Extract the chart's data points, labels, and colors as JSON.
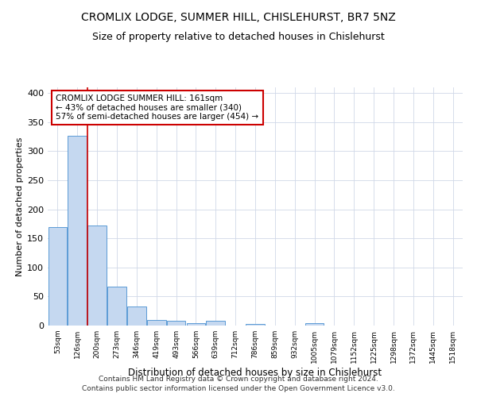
{
  "title": "CROMLIX LODGE, SUMMER HILL, CHISLEHURST, BR7 5NZ",
  "subtitle": "Size of property relative to detached houses in Chislehurst",
  "xlabel": "Distribution of detached houses by size in Chislehurst",
  "ylabel": "Number of detached properties",
  "footnote1": "Contains HM Land Registry data © Crown copyright and database right 2024.",
  "footnote2": "Contains public sector information licensed under the Open Government Licence v3.0.",
  "bar_labels": [
    "53sqm",
    "126sqm",
    "200sqm",
    "273sqm",
    "346sqm",
    "419sqm",
    "493sqm",
    "566sqm",
    "639sqm",
    "712sqm",
    "786sqm",
    "859sqm",
    "932sqm",
    "1005sqm",
    "1079sqm",
    "1152sqm",
    "1225sqm",
    "1298sqm",
    "1372sqm",
    "1445sqm",
    "1518sqm"
  ],
  "bar_values": [
    169,
    327,
    172,
    67,
    33,
    10,
    8,
    4,
    8,
    0,
    3,
    0,
    0,
    4,
    0,
    0,
    0,
    0,
    0,
    0,
    0
  ],
  "bar_color": "#c5d8f0",
  "bar_edge_color": "#5b9bd5",
  "grid_color": "#d0d8e8",
  "red_line_x": 1.5,
  "red_line_color": "#cc0000",
  "annotation_text": "CROMLIX LODGE SUMMER HILL: 161sqm\n← 43% of detached houses are smaller (340)\n57% of semi-detached houses are larger (454) →",
  "annotation_box_color": "#ffffff",
  "annotation_box_edge": "#cc0000",
  "ylim": [
    0,
    410
  ],
  "yticks": [
    0,
    50,
    100,
    150,
    200,
    250,
    300,
    350,
    400
  ],
  "background_color": "#ffffff",
  "title_fontsize": 10,
  "subtitle_fontsize": 9,
  "footnote_fontsize": 6.5
}
